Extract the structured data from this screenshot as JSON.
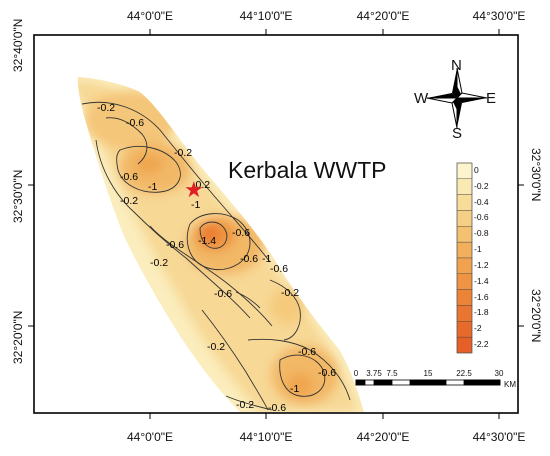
{
  "map": {
    "title": "Kerbala WWTP",
    "marker_symbol": "★",
    "colors": {
      "frame": "#000000",
      "marker": "#e01f25",
      "contour_line": "#333333",
      "ramp": [
        "#fbf4cc",
        "#fbe9b4",
        "#f8dc99",
        "#f6cf86",
        "#f4c170",
        "#f2b05c",
        "#f0a24e",
        "#ee9442",
        "#ec8336",
        "#ea7530",
        "#e86a2b",
        "#e55f26"
      ]
    },
    "top_ticks": [
      "44°0'0\"E",
      "44°10'0\"E",
      "44°20'0\"E",
      "44°30'0\"E"
    ],
    "bottom_ticks": [
      "44°0'0\"E",
      "44°10'0\"E",
      "44°20'0\"E",
      "44°30'0\"E"
    ],
    "left_ticks": [
      "32°40'0\"N",
      "32°30'0\"N",
      "32°20'0\"N"
    ],
    "right_ticks": [
      "32°30'0\"N",
      "32°20'0\"N"
    ],
    "compass": {
      "N": "N",
      "S": "S",
      "E": "E",
      "W": "W",
      "icon": "north-arrow-icon"
    },
    "legend": [
      "0",
      "-0.2",
      "-0.4",
      "-0.6",
      "-0.8",
      "-1",
      "-1.2",
      "-1.4",
      "-1.6",
      "-1.8",
      "-2",
      "-2.2"
    ],
    "scale_bar": {
      "labels": [
        "0",
        "3.75",
        "7.5",
        "15",
        "22.5",
        "30"
      ],
      "unit": "KM"
    },
    "contour_labels": [
      "-0.2",
      "-0.6",
      "-1",
      "-0.2",
      "-1",
      "-1.4",
      "-0.6",
      "-0.2",
      "-0.6",
      "-0.2",
      "-0.6",
      "-0.6",
      "-0.2",
      "-0.6",
      "-1",
      "-0.6",
      "-0.2",
      "-0.2",
      "-0.6",
      "-1",
      "-0.6",
      "-0.2",
      "-0.6"
    ]
  }
}
